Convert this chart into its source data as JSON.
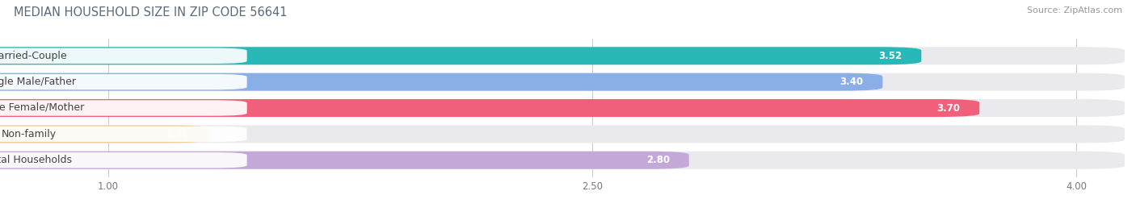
{
  "title": "MEDIAN HOUSEHOLD SIZE IN ZIP CODE 56641",
  "source": "Source: ZipAtlas.com",
  "categories": [
    "Married-Couple",
    "Single Male/Father",
    "Single Female/Mother",
    "Non-family",
    "Total Households"
  ],
  "values": [
    3.52,
    3.4,
    3.7,
    1.31,
    2.8
  ],
  "bar_colors": [
    "#28b8b8",
    "#8aaee8",
    "#f0607a",
    "#f5c896",
    "#c4a8d8"
  ],
  "xlim_data": [
    0,
    4.15
  ],
  "xlim_display": [
    0.7,
    4.15
  ],
  "xticks": [
    1.0,
    2.5,
    4.0
  ],
  "background_color": "#ffffff",
  "bar_bg_color": "#eaeaee",
  "title_fontsize": 10.5,
  "source_fontsize": 8,
  "label_fontsize": 9,
  "value_fontsize": 8.5
}
